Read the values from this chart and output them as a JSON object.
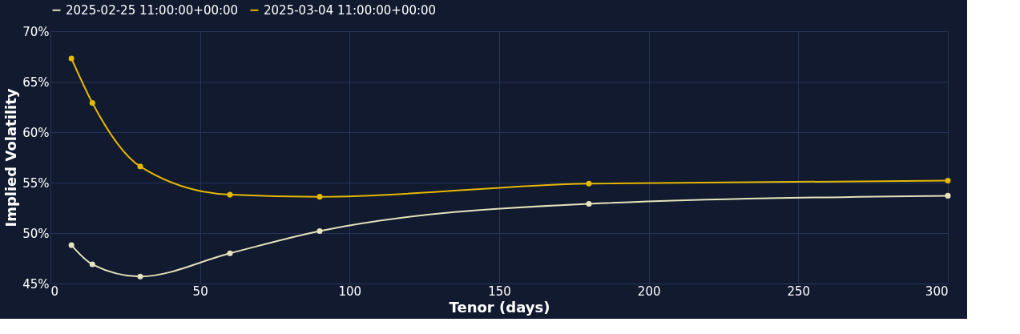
{
  "chart_data": {
    "type": "line",
    "xlabel": "Tenor (days)",
    "ylabel": "Implied Volatility",
    "series": [
      {
        "name": "2025-02-25 11:00:00+00:00",
        "color": "#e6e3bd",
        "x": [
          7,
          14,
          30,
          60,
          90,
          180,
          300
        ],
        "values": [
          48.8,
          46.9,
          45.7,
          48.0,
          50.2,
          52.9,
          53.7
        ]
      },
      {
        "name": "2025-03-04 11:00:00+00:00",
        "color": "#e6b800",
        "x": [
          7,
          14,
          30,
          60,
          90,
          180,
          300
        ],
        "values": [
          67.3,
          62.9,
          56.6,
          53.8,
          53.6,
          54.9,
          55.2
        ]
      }
    ],
    "xlim": [
      0,
      300
    ],
    "xticks": [
      0,
      50,
      100,
      150,
      200,
      250,
      300
    ],
    "ylim": [
      45,
      70
    ],
    "yticks": [
      {
        "value": 45,
        "label": "45%"
      },
      {
        "value": 50,
        "label": "50%"
      },
      {
        "value": 55,
        "label": "55%"
      },
      {
        "value": 60,
        "label": "60%"
      },
      {
        "value": 65,
        "label": "65%"
      },
      {
        "value": 70,
        "label": "70%"
      }
    ],
    "grid": true,
    "legend": "top",
    "marker": "circle",
    "line_style": "solid"
  }
}
